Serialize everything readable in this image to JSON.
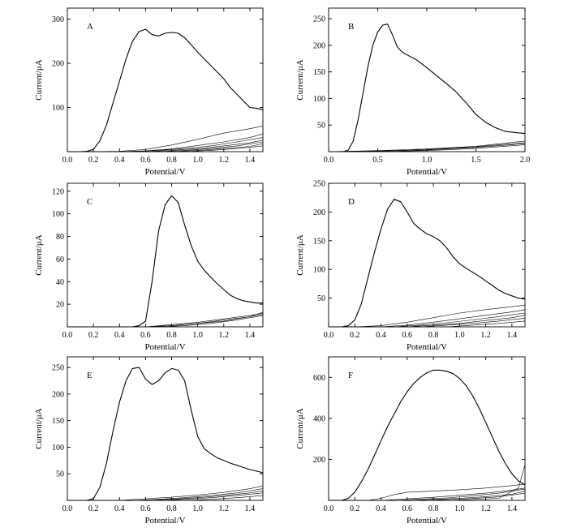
{
  "chart_data": [
    {
      "type": "line",
      "label": "A",
      "xlabel": "Potential/V",
      "ylabel": "Current/μA",
      "xlim": [
        0.0,
        1.5
      ],
      "ylim": [
        0,
        325
      ],
      "xticks": [
        "0.0",
        "0.2",
        "0.4",
        "0.6",
        "0.8",
        "1.0",
        "1.2",
        "1.4"
      ],
      "yticks": [
        "100",
        "200",
        "300"
      ],
      "series": [
        {
          "x": [
            0.0,
            0.1,
            0.15,
            0.2,
            0.25,
            0.3,
            0.35,
            0.4,
            0.45,
            0.5,
            0.55,
            0.6,
            0.65,
            0.7,
            0.75,
            0.8,
            0.85,
            0.9,
            0.95,
            1.0,
            1.05,
            1.1,
            1.15,
            1.2,
            1.25,
            1.3,
            1.35,
            1.4,
            1.45,
            1.5
          ],
          "y": [
            0,
            0,
            1,
            5,
            25,
            60,
            110,
            160,
            210,
            250,
            272,
            277,
            265,
            262,
            268,
            270,
            268,
            258,
            242,
            225,
            210,
            195,
            180,
            165,
            145,
            130,
            115,
            100,
            98,
            95
          ]
        },
        {
          "x": [
            0.0,
            0.2,
            0.4,
            0.6,
            0.8,
            1.0,
            1.2,
            1.4,
            1.5
          ],
          "y": [
            0,
            0,
            1,
            5,
            15,
            28,
            42,
            52,
            58
          ]
        },
        {
          "x": [
            0.0,
            0.4,
            0.6,
            0.8,
            1.0,
            1.2,
            1.4,
            1.5
          ],
          "y": [
            0,
            0,
            2,
            6,
            14,
            22,
            32,
            40
          ]
        },
        {
          "x": [
            0.0,
            0.5,
            0.7,
            0.9,
            1.1,
            1.3,
            1.5
          ],
          "y": [
            0,
            0,
            3,
            7,
            13,
            22,
            32
          ]
        },
        {
          "x": [
            0.0,
            0.6,
            0.8,
            1.0,
            1.2,
            1.4,
            1.5
          ],
          "y": [
            0,
            0,
            3,
            7,
            13,
            20,
            26
          ]
        },
        {
          "x": [
            0.0,
            0.7,
            0.9,
            1.1,
            1.3,
            1.5
          ],
          "y": [
            0,
            0,
            3,
            7,
            13,
            22
          ]
        },
        {
          "x": [
            0.0,
            0.8,
            1.0,
            1.2,
            1.4,
            1.5
          ],
          "y": [
            0,
            0,
            3,
            7,
            12,
            18
          ]
        },
        {
          "x": [
            0.0,
            0.9,
            1.1,
            1.3,
            1.5
          ],
          "y": [
            0,
            0,
            3,
            7,
            13
          ]
        }
      ]
    },
    {
      "type": "line",
      "label": "B",
      "xlabel": "Potential/V",
      "ylabel": "Current/μA",
      "xlim": [
        0.0,
        2.0
      ],
      "ylim": [
        0,
        270
      ],
      "xticks": [
        "0.0",
        "0.5",
        "1.0",
        "1.5",
        "2.0"
      ],
      "yticks": [
        "50",
        "100",
        "150",
        "200",
        "250"
      ],
      "series": [
        {
          "x": [
            0.0,
            0.15,
            0.2,
            0.25,
            0.3,
            0.35,
            0.4,
            0.45,
            0.5,
            0.55,
            0.6,
            0.65,
            0.7,
            0.75,
            0.8,
            0.9,
            1.0,
            1.1,
            1.2,
            1.3,
            1.4,
            1.5,
            1.6,
            1.7,
            1.8,
            1.9,
            2.0
          ],
          "y": [
            0,
            0,
            3,
            20,
            60,
            110,
            160,
            200,
            225,
            238,
            240,
            220,
            197,
            187,
            182,
            172,
            158,
            143,
            128,
            112,
            92,
            70,
            55,
            45,
            38,
            36,
            34
          ]
        },
        {
          "x": [
            0.0,
            0.5,
            1.0,
            1.5,
            2.0
          ],
          "y": [
            0,
            2,
            5,
            10,
            20
          ]
        },
        {
          "x": [
            0.0,
            0.5,
            1.0,
            1.5,
            2.0
          ],
          "y": [
            0,
            1,
            4,
            9,
            17
          ]
        },
        {
          "x": [
            0.0,
            0.5,
            1.0,
            1.5,
            2.0
          ],
          "y": [
            0,
            1,
            3,
            8,
            15
          ]
        },
        {
          "x": [
            0.0,
            0.5,
            1.0,
            1.5,
            2.0
          ],
          "y": [
            0,
            0,
            2,
            6,
            13
          ]
        }
      ]
    },
    {
      "type": "line",
      "label": "C",
      "xlabel": "Potential/V",
      "ylabel": "Current/μA",
      "xlim": [
        0.0,
        1.5
      ],
      "ylim": [
        0,
        127
      ],
      "xticks": [
        "0.0",
        "0.2",
        "0.4",
        "0.6",
        "0.8",
        "1.0",
        "1.2",
        "1.4"
      ],
      "yticks": [
        "20",
        "40",
        "60",
        "80",
        "100",
        "120"
      ],
      "series": [
        {
          "x": [
            0.0,
            0.5,
            0.55,
            0.6,
            0.65,
            0.7,
            0.75,
            0.8,
            0.85,
            0.9,
            0.95,
            1.0,
            1.05,
            1.1,
            1.15,
            1.2,
            1.25,
            1.3,
            1.35,
            1.4,
            1.45,
            1.5
          ],
          "y": [
            0,
            0,
            1,
            5,
            40,
            85,
            108,
            116,
            110,
            90,
            72,
            58,
            50,
            44,
            38,
            33,
            28,
            25,
            23,
            22,
            21,
            21
          ]
        },
        {
          "x": [
            0.0,
            0.6,
            0.8,
            1.0,
            1.2,
            1.4,
            1.5
          ],
          "y": [
            0,
            0,
            2,
            4,
            7,
            10,
            12
          ]
        },
        {
          "x": [
            0.0,
            0.6,
            0.8,
            1.0,
            1.2,
            1.4,
            1.5
          ],
          "y": [
            0,
            0,
            1,
            3,
            6,
            9,
            11
          ]
        },
        {
          "x": [
            0.0,
            0.6,
            0.8,
            1.0,
            1.2,
            1.4,
            1.5
          ],
          "y": [
            0,
            0,
            1,
            3,
            5,
            9,
            13
          ]
        },
        {
          "x": [
            0.0,
            0.7,
            0.9,
            1.1,
            1.3,
            1.5
          ],
          "y": [
            0,
            0,
            1,
            3,
            6,
            10
          ]
        }
      ]
    },
    {
      "type": "line",
      "label": "D",
      "xlabel": "Potential/V",
      "ylabel": "Current/μA",
      "xlim": [
        0.0,
        1.5
      ],
      "ylim": [
        0,
        250
      ],
      "xticks": [
        "0.0",
        "0.2",
        "0.4",
        "0.6",
        "0.8",
        "1.0",
        "1.2",
        "1.4"
      ],
      "yticks": [
        "50",
        "100",
        "150",
        "200",
        "250"
      ],
      "series": [
        {
          "x": [
            0.0,
            0.1,
            0.15,
            0.2,
            0.25,
            0.3,
            0.35,
            0.4,
            0.45,
            0.5,
            0.55,
            0.6,
            0.65,
            0.7,
            0.75,
            0.8,
            0.85,
            0.9,
            0.95,
            1.0,
            1.05,
            1.1,
            1.15,
            1.2,
            1.25,
            1.3,
            1.35,
            1.4,
            1.45,
            1.5
          ],
          "y": [
            0,
            0,
            2,
            12,
            40,
            85,
            130,
            170,
            205,
            222,
            218,
            200,
            180,
            170,
            162,
            157,
            150,
            138,
            122,
            110,
            102,
            95,
            88,
            80,
            72,
            64,
            58,
            54,
            50,
            48
          ]
        },
        {
          "x": [
            0.0,
            0.2,
            0.4,
            0.6,
            0.8,
            1.0,
            1.2,
            1.4,
            1.5
          ],
          "y": [
            0,
            0,
            2,
            8,
            16,
            24,
            30,
            35,
            38
          ]
        },
        {
          "x": [
            0.0,
            0.4,
            0.6,
            0.8,
            1.0,
            1.2,
            1.4,
            1.5
          ],
          "y": [
            0,
            0,
            3,
            8,
            14,
            20,
            26,
            30
          ]
        },
        {
          "x": [
            0.0,
            0.5,
            0.7,
            0.9,
            1.1,
            1.3,
            1.5
          ],
          "y": [
            0,
            0,
            3,
            7,
            12,
            18,
            24
          ]
        },
        {
          "x": [
            0.0,
            0.6,
            0.8,
            1.0,
            1.2,
            1.4,
            1.5
          ],
          "y": [
            0,
            0,
            3,
            6,
            11,
            16,
            20
          ]
        },
        {
          "x": [
            0.0,
            0.7,
            0.9,
            1.1,
            1.3,
            1.5
          ],
          "y": [
            0,
            0,
            3,
            6,
            10,
            15
          ]
        },
        {
          "x": [
            0.0,
            0.9,
            1.1,
            1.3,
            1.5
          ],
          "y": [
            0,
            0,
            3,
            6,
            10
          ]
        }
      ]
    },
    {
      "type": "line",
      "label": "E",
      "xlabel": "Potential/V",
      "ylabel": "Current/μA",
      "xlim": [
        0.0,
        1.5
      ],
      "ylim": [
        0,
        270
      ],
      "xticks": [
        "0.0",
        "0.2",
        "0.4",
        "0.6",
        "0.8",
        "1.0",
        "1.2",
        "1.4"
      ],
      "yticks": [
        "50",
        "100",
        "150",
        "200",
        "250"
      ],
      "series": [
        {
          "x": [
            0.0,
            0.15,
            0.2,
            0.25,
            0.3,
            0.35,
            0.4,
            0.45,
            0.5,
            0.55,
            0.6,
            0.65,
            0.7,
            0.75,
            0.8,
            0.85,
            0.9,
            0.95,
            1.0,
            1.05,
            1.1,
            1.15,
            1.2,
            1.25,
            1.3,
            1.35,
            1.4,
            1.45,
            1.5
          ],
          "y": [
            0,
            0,
            3,
            25,
            70,
            130,
            185,
            225,
            248,
            250,
            228,
            218,
            225,
            240,
            248,
            245,
            225,
            170,
            120,
            97,
            88,
            80,
            75,
            70,
            66,
            62,
            58,
            55,
            52
          ]
        },
        {
          "x": [
            0.0,
            0.4,
            0.6,
            0.8,
            1.0,
            1.2,
            1.4,
            1.5
          ],
          "y": [
            0,
            0,
            3,
            6,
            10,
            15,
            22,
            27
          ]
        },
        {
          "x": [
            0.0,
            0.5,
            0.7,
            0.9,
            1.1,
            1.3,
            1.5
          ],
          "y": [
            0,
            0,
            2,
            5,
            9,
            14,
            22
          ]
        },
        {
          "x": [
            0.0,
            0.6,
            0.8,
            1.0,
            1.2,
            1.4,
            1.5
          ],
          "y": [
            0,
            0,
            2,
            5,
            9,
            14,
            18
          ]
        },
        {
          "x": [
            0.0,
            0.7,
            0.9,
            1.1,
            1.3,
            1.5
          ],
          "y": [
            0,
            0,
            2,
            5,
            9,
            14
          ]
        },
        {
          "x": [
            0.0,
            0.9,
            1.1,
            1.3,
            1.5
          ],
          "y": [
            0,
            0,
            2,
            5,
            9
          ]
        }
      ]
    },
    {
      "type": "line",
      "label": "F",
      "xlabel": "Potential/V",
      "ylabel": "Current/μA",
      "xlim": [
        0.0,
        1.5
      ],
      "ylim": [
        0,
        700
      ],
      "xticks": [
        "0.0",
        "0.2",
        "0.4",
        "0.6",
        "0.8",
        "1.0",
        "1.2",
        "1.4"
      ],
      "yticks": [
        "200",
        "400",
        "600"
      ],
      "series": [
        {
          "x": [
            0.0,
            0.1,
            0.15,
            0.2,
            0.25,
            0.3,
            0.35,
            0.4,
            0.45,
            0.5,
            0.55,
            0.6,
            0.65,
            0.7,
            0.75,
            0.8,
            0.85,
            0.9,
            0.95,
            1.0,
            1.05,
            1.1,
            1.15,
            1.2,
            1.25,
            1.3,
            1.35,
            1.4,
            1.45,
            1.5
          ],
          "y": [
            0,
            0,
            10,
            40,
            90,
            150,
            220,
            290,
            360,
            420,
            480,
            530,
            570,
            600,
            622,
            635,
            635,
            630,
            618,
            595,
            560,
            510,
            450,
            380,
            310,
            240,
            180,
            130,
            95,
            75
          ]
        },
        {
          "x": [
            0.0,
            0.3,
            0.4,
            0.5,
            0.6,
            0.8,
            1.0,
            1.2,
            1.4,
            1.5
          ],
          "y": [
            0,
            0,
            10,
            28,
            40,
            45,
            52,
            60,
            72,
            80
          ]
        },
        {
          "x": [
            0.0,
            0.4,
            0.6,
            0.8,
            1.0,
            1.2,
            1.4,
            1.5
          ],
          "y": [
            0,
            0,
            8,
            15,
            25,
            35,
            50,
            60
          ]
        },
        {
          "x": [
            0.0,
            0.5,
            0.7,
            0.9,
            1.1,
            1.3,
            1.5
          ],
          "y": [
            0,
            0,
            6,
            12,
            22,
            35,
            55
          ]
        },
        {
          "x": [
            0.0,
            0.6,
            0.8,
            1.0,
            1.2,
            1.4,
            1.5
          ],
          "y": [
            0,
            0,
            5,
            10,
            18,
            30,
            45
          ]
        },
        {
          "x": [
            0.0,
            0.7,
            0.9,
            1.1,
            1.3,
            1.5
          ],
          "y": [
            0,
            0,
            4,
            9,
            17,
            35
          ]
        },
        {
          "x": [
            0.0,
            0.9,
            1.1,
            1.3,
            1.45,
            1.5
          ],
          "y": [
            0,
            0,
            4,
            10,
            60,
            175
          ]
        }
      ]
    }
  ]
}
